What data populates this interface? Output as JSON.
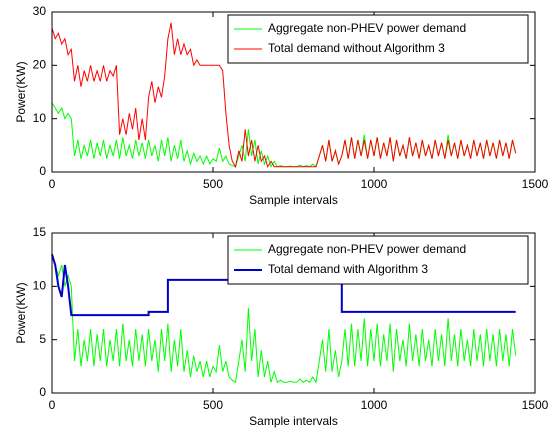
{
  "chart_data": [
    {
      "type": "line",
      "x": [
        0,
        10,
        20,
        30,
        40,
        50,
        60,
        70,
        80,
        90,
        100,
        110,
        120,
        130,
        140,
        150,
        160,
        170,
        180,
        190,
        200,
        210,
        220,
        230,
        240,
        250,
        260,
        270,
        280,
        290,
        300,
        310,
        320,
        330,
        340,
        350,
        360,
        370,
        380,
        390,
        400,
        410,
        420,
        430,
        440,
        450,
        460,
        470,
        480,
        490,
        500,
        510,
        520,
        530,
        540,
        550,
        560,
        570,
        580,
        590,
        600,
        610,
        620,
        630,
        640,
        650,
        660,
        670,
        680,
        690,
        700,
        710,
        720,
        730,
        740,
        750,
        760,
        770,
        780,
        790,
        800,
        810,
        820,
        830,
        840,
        850,
        860,
        870,
        880,
        890,
        900,
        910,
        920,
        930,
        940,
        950,
        960,
        970,
        980,
        990,
        1000,
        1010,
        1020,
        1030,
        1040,
        1050,
        1060,
        1070,
        1080,
        1090,
        1100,
        1110,
        1120,
        1130,
        1140,
        1150,
        1160,
        1170,
        1180,
        1190,
        1200,
        1210,
        1220,
        1230,
        1240,
        1250,
        1260,
        1270,
        1280,
        1290,
        1300,
        1310,
        1320,
        1330,
        1340,
        1350,
        1360,
        1370,
        1380,
        1390,
        1400,
        1410,
        1420,
        1430,
        1440
      ],
      "series": [
        {
          "name": "Aggregate non-PHEV power demand",
          "color": "#00ff00",
          "values": [
            13,
            12,
            11,
            12,
            10,
            11,
            10,
            3,
            6,
            2.5,
            5,
            3,
            6,
            2.5,
            5.5,
            3,
            6,
            2.5,
            5,
            3,
            6,
            2.5,
            6.5,
            3,
            5,
            2.5,
            6,
            3,
            5.5,
            2.5,
            6,
            3,
            5,
            2,
            6,
            3,
            6.5,
            2,
            5,
            2.5,
            6,
            2,
            4,
            1.5,
            3.5,
            2,
            3,
            1.5,
            3,
            1.5,
            2.5,
            2,
            4.5,
            2,
            3,
            1.5,
            1.2,
            1,
            3,
            5,
            2,
            8,
            3,
            6,
            1.5,
            4,
            1.5,
            3,
            1,
            2,
            1,
            1.2,
            1,
            1,
            1.1,
            1,
            1,
            1.3,
            1,
            1.2,
            1,
            1.5,
            1,
            3,
            5,
            2,
            6,
            2,
            4,
            1.5,
            3,
            6,
            2.5,
            6.5,
            2.5,
            6,
            3,
            7,
            2.5,
            6,
            3,
            6.5,
            2.5,
            5.5,
            3,
            6.5,
            2,
            6,
            3,
            5,
            2.5,
            6.5,
            3,
            5.5,
            2.5,
            6,
            3,
            5,
            2.5,
            6,
            3,
            5.5,
            2.5,
            7,
            3,
            5.5,
            2.5,
            6,
            3,
            5,
            2.5,
            6,
            3,
            5.5,
            2.5,
            6,
            3,
            5.5,
            2.5,
            6,
            3,
            5.5,
            2.5,
            6,
            3.5
          ]
        },
        {
          "name": "Total demand without Algorithm 3",
          "color": "#ff0000",
          "values": [
            27,
            25,
            26,
            24,
            25,
            22,
            23,
            17,
            20,
            16,
            19,
            17,
            20,
            17,
            19,
            17,
            20,
            17,
            19,
            18,
            20,
            7,
            10,
            7,
            11,
            8,
            12,
            6,
            10,
            6,
            14,
            17,
            13,
            16,
            14,
            18,
            25,
            28,
            22,
            25,
            22,
            24,
            22,
            23,
            20,
            21,
            20,
            20,
            20,
            20,
            20,
            20,
            20,
            19,
            11,
            5,
            2,
            1,
            4,
            2,
            8,
            3,
            6,
            2,
            5,
            2,
            3,
            1,
            2,
            1,
            1,
            1,
            1,
            1,
            1,
            1,
            1,
            1,
            1,
            1,
            1,
            1,
            1,
            3,
            5,
            2,
            6,
            2,
            4,
            1.5,
            3,
            6,
            2.5,
            6.5,
            2.5,
            6,
            3,
            6,
            2.5,
            6,
            3,
            6.5,
            2.5,
            5.5,
            3,
            6.5,
            2,
            6,
            3,
            5,
            2.5,
            6.5,
            3,
            5.5,
            2.5,
            6,
            3,
            5,
            2.5,
            6,
            3,
            5.5,
            2.5,
            6,
            3,
            5.5,
            2.5,
            6,
            3,
            5,
            2.5,
            6,
            3,
            5.5,
            2.5,
            6,
            3,
            5.5,
            2.5,
            6,
            3,
            5.5,
            2.5,
            6,
            3.5
          ]
        }
      ],
      "xlabel": "Sample intervals",
      "ylabel": "Power(KW)",
      "xlim": [
        0,
        1500
      ],
      "xticks": [
        0,
        500,
        1000,
        1500
      ],
      "ylim": [
        0,
        30
      ],
      "yticks": [
        0,
        10,
        20,
        30
      ]
    },
    {
      "type": "line",
      "x": [
        0,
        10,
        20,
        30,
        40,
        50,
        60,
        70,
        80,
        90,
        100,
        110,
        120,
        130,
        140,
        150,
        160,
        170,
        180,
        190,
        200,
        210,
        220,
        230,
        240,
        250,
        260,
        270,
        280,
        290,
        300,
        310,
        320,
        330,
        340,
        350,
        360,
        370,
        380,
        390,
        400,
        410,
        420,
        430,
        440,
        450,
        460,
        470,
        480,
        490,
        500,
        510,
        520,
        530,
        540,
        550,
        560,
        570,
        580,
        590,
        600,
        610,
        620,
        630,
        640,
        650,
        660,
        670,
        680,
        690,
        700,
        710,
        720,
        730,
        740,
        750,
        760,
        770,
        780,
        790,
        800,
        810,
        820,
        830,
        840,
        850,
        860,
        870,
        880,
        890,
        900,
        910,
        920,
        930,
        940,
        950,
        960,
        970,
        980,
        990,
        1000,
        1010,
        1020,
        1030,
        1040,
        1050,
        1060,
        1070,
        1080,
        1090,
        1100,
        1110,
        1120,
        1130,
        1140,
        1150,
        1160,
        1170,
        1180,
        1190,
        1200,
        1210,
        1220,
        1230,
        1240,
        1250,
        1260,
        1270,
        1280,
        1290,
        1300,
        1310,
        1320,
        1330,
        1340,
        1350,
        1360,
        1370,
        1380,
        1390,
        1400,
        1410,
        1420,
        1430,
        1440
      ],
      "series": [
        {
          "name": "Aggregate non-PHEV power demand",
          "color": "#00ff00",
          "values": [
            13,
            12,
            11,
            12,
            10,
            11,
            10,
            3,
            6,
            2.5,
            5,
            3,
            6,
            2.5,
            5.5,
            3,
            6,
            2.5,
            5,
            3,
            6,
            2.5,
            6.5,
            3,
            5,
            2.5,
            6,
            3,
            5.5,
            2.5,
            6,
            3,
            5,
            2,
            6,
            3,
            6.5,
            2,
            5,
            2.5,
            6,
            2,
            4,
            1.5,
            3.5,
            2,
            3,
            1.5,
            3,
            1.5,
            2.5,
            2,
            4.5,
            2,
            3,
            1.5,
            1.2,
            1,
            3,
            5,
            2,
            8,
            3,
            6,
            1.5,
            4,
            1.5,
            3,
            1,
            2,
            1,
            1.2,
            1,
            1,
            1.1,
            1,
            1,
            1.3,
            1,
            1.2,
            1,
            1.5,
            1,
            3,
            5,
            2,
            6,
            2,
            4,
            1.5,
            3,
            6,
            2.5,
            6.5,
            2.5,
            6,
            3,
            7,
            2.5,
            6,
            3,
            6.5,
            2.5,
            5.5,
            3,
            6.5,
            2,
            6,
            3,
            5,
            2.5,
            6.5,
            3,
            5.5,
            2.5,
            6,
            3,
            5,
            2.5,
            6,
            3,
            5.5,
            2.5,
            7,
            3,
            5.5,
            2.5,
            6,
            3,
            5,
            2.5,
            6,
            3,
            5.5,
            2.5,
            6,
            3,
            5.5,
            2.5,
            6,
            3,
            5.5,
            2.5,
            6,
            3.5
          ]
        },
        {
          "name": "Total demand with Algorithm 3",
          "color": "#0000cc",
          "x": [
            0,
            10,
            20,
            30,
            40,
            50,
            60,
            300,
            300,
            360,
            360,
            900,
            900,
            1440
          ],
          "values": [
            13,
            12,
            10,
            9,
            12,
            10,
            7.3,
            7.3,
            7.6,
            7.6,
            10.6,
            10.6,
            7.6,
            7.6
          ]
        }
      ],
      "xlabel": "Sample intervals",
      "ylabel": "Power(KW)",
      "xlim": [
        0,
        1500
      ],
      "xticks": [
        0,
        500,
        1000,
        1500
      ],
      "ylim": [
        0,
        15
      ],
      "yticks": [
        0,
        5,
        10,
        15
      ]
    }
  ]
}
